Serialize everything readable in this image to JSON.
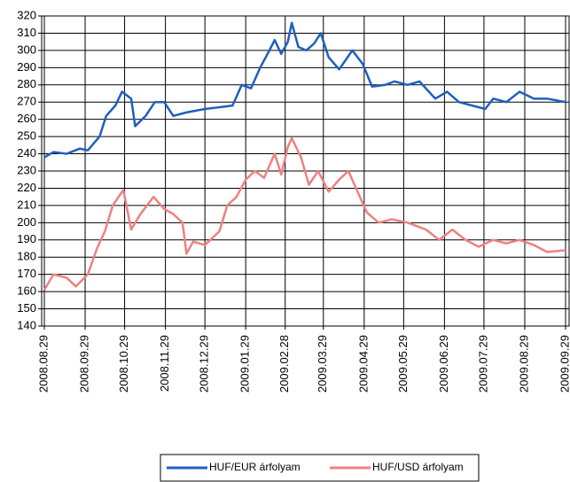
{
  "chart_data": {
    "type": "line",
    "xlim": [
      "2008.08.29",
      "2009.09.29"
    ],
    "xticks": [
      "2008.08.29",
      "2008.09.29",
      "2008.10.29",
      "2008.11.29",
      "2008.12.29",
      "2009.01.29",
      "2009.02.28",
      "2009.03.29",
      "2009.04.29",
      "2009.05.29",
      "2009.06.29",
      "2009.07.29",
      "2009.08.29",
      "2009.09.29"
    ],
    "ylim": [
      140,
      320
    ],
    "yticks": [
      140,
      150,
      160,
      170,
      180,
      190,
      200,
      210,
      220,
      230,
      240,
      250,
      260,
      270,
      280,
      290,
      300,
      310,
      320
    ],
    "grid": true,
    "legend": "bottom",
    "series": [
      {
        "name": "HUF/EUR árfolyam",
        "color": "#1f5fbf",
        "x": [
          "2008.08.29",
          "2008.09.05",
          "2008.09.15",
          "2008.09.25",
          "2008.10.01",
          "2008.10.10",
          "2008.10.15",
          "2008.10.22",
          "2008.10.27",
          "2008.11.03",
          "2008.11.06",
          "2008.11.14",
          "2008.11.21",
          "2008.11.28",
          "2008.12.05",
          "2008.12.15",
          "2008.12.29",
          "2009.01.09",
          "2009.01.19",
          "2009.01.26",
          "2009.02.02",
          "2009.02.09",
          "2009.02.16",
          "2009.02.20",
          "2009.02.25",
          "2009.03.02",
          "2009.03.05",
          "2009.03.10",
          "2009.03.16",
          "2009.03.22",
          "2009.03.27",
          "2009.04.02",
          "2009.04.10",
          "2009.04.20",
          "2009.04.28",
          "2009.05.05",
          "2009.05.15",
          "2009.05.22",
          "2009.06.01",
          "2009.06.10",
          "2009.06.22",
          "2009.07.01",
          "2009.07.10",
          "2009.07.20",
          "2009.07.30",
          "2009.08.05",
          "2009.08.15",
          "2009.08.25",
          "2009.09.05",
          "2009.09.15",
          "2009.09.29"
        ],
        "values": [
          238,
          241,
          240,
          243,
          242,
          250,
          262,
          268,
          276,
          272,
          256,
          262,
          270,
          270,
          262,
          264,
          266,
          267,
          268,
          280,
          278,
          290,
          300,
          306,
          298,
          305,
          316,
          302,
          300,
          304,
          310,
          296,
          289,
          300,
          292,
          279,
          280,
          282,
          280,
          282,
          272,
          276,
          270,
          268,
          266,
          272,
          270,
          276,
          272,
          272,
          270
        ]
      },
      {
        "name": "HUF/USD árfolyam",
        "color": "#f08080",
        "x": [
          "2008.08.29",
          "2008.09.05",
          "2008.09.15",
          "2008.09.22",
          "2008.10.01",
          "2008.10.08",
          "2008.10.14",
          "2008.10.20",
          "2008.10.28",
          "2008.11.03",
          "2008.11.10",
          "2008.11.20",
          "2008.11.28",
          "2008.12.05",
          "2008.12.12",
          "2008.12.15",
          "2008.12.20",
          "2008.12.29",
          "2009.01.09",
          "2009.01.15",
          "2009.01.22",
          "2009.01.29",
          "2009.02.05",
          "2009.02.12",
          "2009.02.20",
          "2009.02.25",
          "2009.03.02",
          "2009.03.05",
          "2009.03.12",
          "2009.03.18",
          "2009.03.25",
          "2009.04.02",
          "2009.04.10",
          "2009.04.17",
          "2009.04.24",
          "2009.05.01",
          "2009.05.10",
          "2009.05.20",
          "2009.06.01",
          "2009.06.15",
          "2009.06.25",
          "2009.07.05",
          "2009.07.15",
          "2009.07.25",
          "2009.08.05",
          "2009.08.15",
          "2009.08.25",
          "2009.09.05",
          "2009.09.15",
          "2009.09.29"
        ],
        "values": [
          161,
          170,
          168,
          163,
          170,
          185,
          195,
          210,
          219,
          196,
          205,
          215,
          208,
          205,
          200,
          182,
          189,
          187,
          195,
          210,
          215,
          225,
          230,
          226,
          240,
          228,
          244,
          249,
          238,
          222,
          230,
          218,
          225,
          230,
          218,
          206,
          200,
          202,
          200,
          196,
          190,
          196,
          190,
          186,
          190,
          188,
          190,
          187,
          183,
          184
        ]
      }
    ]
  }
}
